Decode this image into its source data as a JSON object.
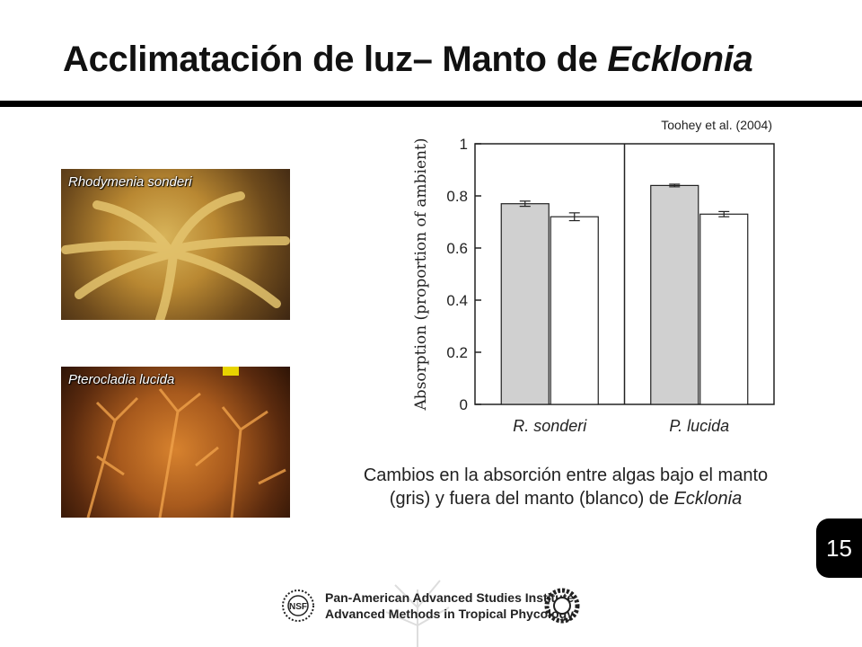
{
  "slide": {
    "title_main": "Acclimatación de luz– Manto de ",
    "title_italic": "Ecklonia",
    "citation": "Toohey et al. (2004)",
    "caption_main": "Cambios en la absorción entre algas bajo el manto (gris) y fuera del manto (blanco) de ",
    "caption_italic": "Ecklonia",
    "page_number": "15"
  },
  "photos": [
    {
      "label": "Rhodymenia sonderi"
    },
    {
      "label": "Pterocladia lucida"
    }
  ],
  "footer": {
    "line1": "Pan-American Advanced Studies Institute",
    "line2": "Advanced Methods in Tropical Phycology",
    "logo_left_text": "NSF"
  },
  "chart_data": {
    "type": "bar",
    "categories": [
      "R. sonderi",
      "P. lucida"
    ],
    "series": [
      {
        "values": [
          0.77,
          0.84
        ],
        "errors": [
          0.01,
          0.005
        ],
        "color": "#d0d0d0"
      },
      {
        "values": [
          0.72,
          0.73
        ],
        "errors": [
          0.015,
          0.01
        ],
        "color": "#ffffff"
      }
    ],
    "ylabel": "Absorption (proportion of ambient)",
    "ylim": [
      0,
      1
    ],
    "yticks": [
      0,
      0.2,
      0.4,
      0.6,
      0.8,
      1
    ],
    "ytick_labels": [
      "0",
      "0.2",
      "0.4",
      "0.6",
      "0.8",
      "1"
    ],
    "panel_divider": true,
    "grid": false
  }
}
